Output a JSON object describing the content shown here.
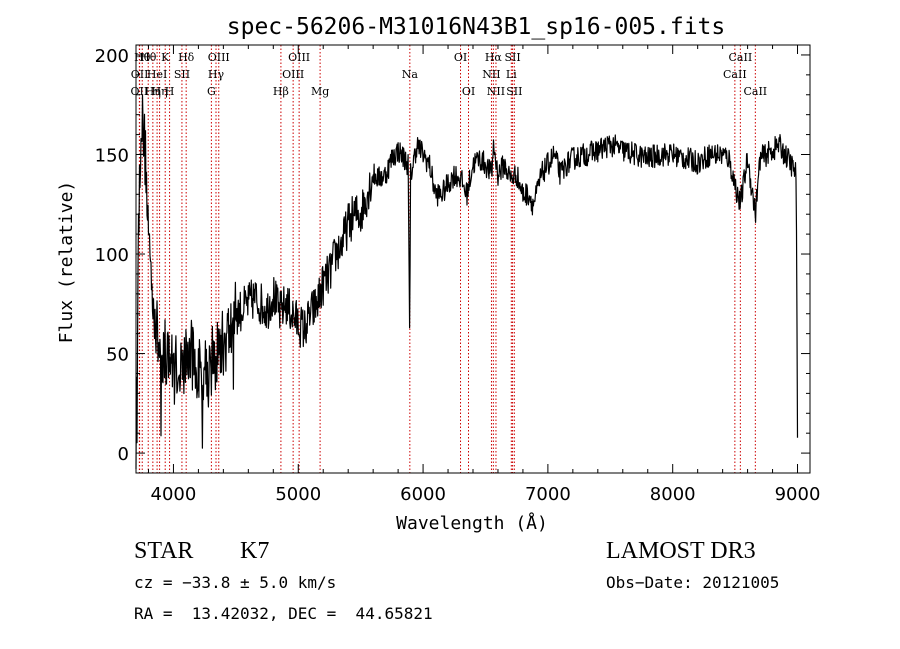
{
  "chart_data": {
    "type": "line",
    "title": "spec-56206-M31016N43B1_sp16-005.fits",
    "xlabel": "Wavelength (Å)",
    "ylabel": "Flux (relative)",
    "xlim": [
      3700,
      9100
    ],
    "ylim": [
      -10,
      205
    ],
    "xticks": [
      4000,
      5000,
      6000,
      7000,
      8000,
      9000
    ],
    "yticks": [
      0,
      50,
      100,
      150,
      200
    ],
    "grid": false,
    "series": [
      {
        "name": "flux",
        "x": [
          3700,
          3720,
          3740,
          3760,
          3780,
          3800,
          3820,
          3840,
          3860,
          3880,
          3900,
          3920,
          3940,
          3960,
          3980,
          4000,
          4050,
          4100,
          4150,
          4200,
          4250,
          4300,
          4350,
          4400,
          4450,
          4500,
          4550,
          4600,
          4650,
          4700,
          4750,
          4800,
          4850,
          4900,
          4950,
          5000,
          5050,
          5100,
          5150,
          5200,
          5250,
          5300,
          5350,
          5400,
          5450,
          5500,
          5550,
          5600,
          5650,
          5700,
          5750,
          5800,
          5850,
          5880,
          5893,
          5900,
          5920,
          5950,
          6000,
          6050,
          6100,
          6150,
          6200,
          6250,
          6300,
          6350,
          6400,
          6450,
          6500,
          6550,
          6563,
          6600,
          6650,
          6700,
          6750,
          6800,
          6850,
          6880,
          6900,
          6950,
          7000,
          7050,
          7100,
          7150,
          7200,
          7300,
          7400,
          7500,
          7600,
          7700,
          7800,
          7900,
          8000,
          8100,
          8200,
          8300,
          8400,
          8450,
          8498,
          8542,
          8600,
          8662,
          8700,
          8750,
          8800,
          8850,
          8900,
          8950,
          8990,
          9000
        ],
        "y": [
          5,
          110,
          170,
          160,
          145,
          110,
          90,
          80,
          62,
          55,
          50,
          52,
          48,
          55,
          45,
          42,
          45,
          48,
          50,
          40,
          45,
          45,
          50,
          55,
          60,
          70,
          72,
          75,
          78,
          75,
          72,
          80,
          70,
          75,
          70,
          65,
          62,
          70,
          75,
          85,
          90,
          100,
          105,
          115,
          120,
          120,
          130,
          140,
          138,
          140,
          148,
          152,
          148,
          145,
          55,
          140,
          145,
          155,
          150,
          145,
          130,
          130,
          135,
          140,
          138,
          130,
          145,
          148,
          145,
          140,
          155,
          140,
          145,
          138,
          140,
          130,
          130,
          125,
          128,
          140,
          145,
          150,
          140,
          145,
          148,
          150,
          152,
          155,
          152,
          150,
          148,
          150,
          150,
          148,
          146,
          150,
          150,
          148,
          135,
          125,
          148,
          120,
          148,
          150,
          152,
          155,
          150,
          145,
          140,
          5
        ]
      }
    ],
    "lines": [
      {
        "wl": 3727,
        "label": "OII",
        "row": 2
      },
      {
        "wl": 3729,
        "label": "OII",
        "row": 1
      },
      {
        "wl": 3750,
        "label": "Hθ",
        "row": 0
      },
      {
        "wl": 3798,
        "label": "Hθ",
        "row": 0
      },
      {
        "wl": 3835,
        "label": "Hη",
        "row": 2
      },
      {
        "wl": 3869,
        "label": "HeI",
        "row": 1
      },
      {
        "wl": 3889,
        "label": "Hη",
        "row": 2
      },
      {
        "wl": 3934,
        "label": "K",
        "row": 0
      },
      {
        "wl": 3969,
        "label": "H",
        "row": 2
      },
      {
        "wl": 4068,
        "label": "SII",
        "row": 1
      },
      {
        "wl": 4102,
        "label": "Hδ",
        "row": 0
      },
      {
        "wl": 4304,
        "label": "G",
        "row": 2
      },
      {
        "wl": 4341,
        "label": "Hγ",
        "row": 1
      },
      {
        "wl": 4363,
        "label": "OIII",
        "row": 0
      },
      {
        "wl": 4861,
        "label": "Hβ",
        "row": 2
      },
      {
        "wl": 4959,
        "label": "OIII",
        "row": 1
      },
      {
        "wl": 5007,
        "label": "OIII",
        "row": 0
      },
      {
        "wl": 5175,
        "label": "Mg",
        "row": 2
      },
      {
        "wl": 5894,
        "label": "Na",
        "row": 1
      },
      {
        "wl": 6300,
        "label": "OI",
        "row": 0
      },
      {
        "wl": 6364,
        "label": "OI",
        "row": 2
      },
      {
        "wl": 6548,
        "label": "NII",
        "row": 1
      },
      {
        "wl": 6563,
        "label": "Hα",
        "row": 0
      },
      {
        "wl": 6584,
        "label": "NII",
        "row": 2
      },
      {
        "wl": 6707,
        "label": "Li",
        "row": 1
      },
      {
        "wl": 6717,
        "label": "SII",
        "row": 0
      },
      {
        "wl": 6731,
        "label": "SII",
        "row": 2
      },
      {
        "wl": 8498,
        "label": "CaII",
        "row": 1
      },
      {
        "wl": 8542,
        "label": "CaII",
        "row": 0
      },
      {
        "wl": 8662,
        "label": "CaII",
        "row": 2
      }
    ],
    "colors": {
      "spectrum": "#000000",
      "line_marker": "#cc0000",
      "axes": "#000000"
    }
  },
  "info": {
    "class_label": "STAR",
    "subclass": "K7",
    "survey": "LAMOST DR3",
    "cz": "cz = −33.8 ± 5.0 km/s",
    "obs_date": "Obs−Date: 20121005",
    "coords": "RA =  13.42032, DEC =  44.65821"
  }
}
